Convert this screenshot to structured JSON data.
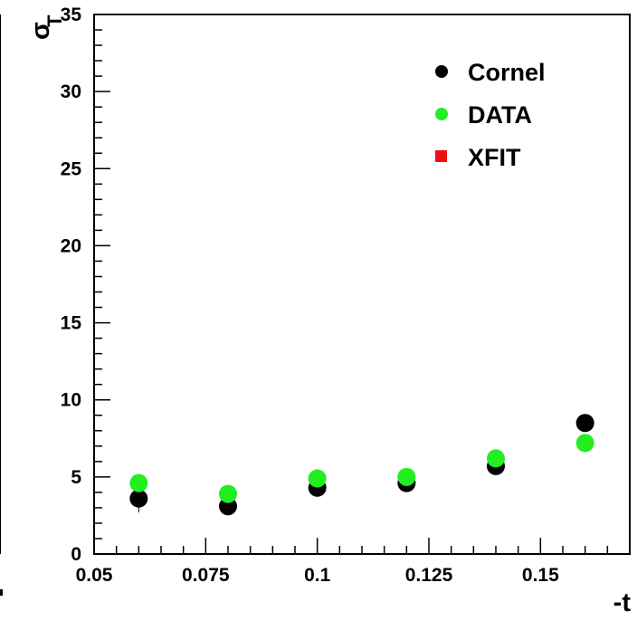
{
  "chart_data": {
    "type": "scatter",
    "xlabel": "-t",
    "ylabel_symbol": "σ",
    "ylabel_subscript": "T",
    "xlim": [
      0.05,
      0.17
    ],
    "ylim": [
      0,
      35
    ],
    "x_ticks": [
      "0.05",
      "0.075",
      "0.1",
      "0.125",
      "0.15"
    ],
    "x_tick_values": [
      0.05,
      0.075,
      0.1,
      0.125,
      0.15
    ],
    "y_ticks": [
      "0",
      "5",
      "10",
      "15",
      "20",
      "25",
      "30",
      "35"
    ],
    "y_tick_values": [
      0,
      5,
      10,
      15,
      20,
      25,
      30,
      35
    ],
    "grid": false,
    "legend_position": "top-right",
    "series": [
      {
        "name": "Cornel",
        "color": "#000000",
        "marker": "circle",
        "points": [
          {
            "x": 0.06,
            "y": 3.6,
            "err": 0.9
          },
          {
            "x": 0.08,
            "y": 3.1,
            "err": 0.5
          },
          {
            "x": 0.1,
            "y": 4.3,
            "err": 0.4
          },
          {
            "x": 0.12,
            "y": 4.6,
            "err": 0.4
          },
          {
            "x": 0.14,
            "y": 5.7,
            "err": 0.4
          },
          {
            "x": 0.16,
            "y": 8.5,
            "err": 0.5
          }
        ]
      },
      {
        "name": "DATA",
        "color": "#22ee22",
        "marker": "circle",
        "points": [
          {
            "x": 0.06,
            "y": 4.6
          },
          {
            "x": 0.08,
            "y": 3.9
          },
          {
            "x": 0.1,
            "y": 4.9
          },
          {
            "x": 0.12,
            "y": 5.0
          },
          {
            "x": 0.14,
            "y": 6.2
          },
          {
            "x": 0.16,
            "y": 7.2
          }
        ]
      },
      {
        "name": "XFIT",
        "color": "#ee1111",
        "marker": "square",
        "points": []
      }
    ]
  }
}
